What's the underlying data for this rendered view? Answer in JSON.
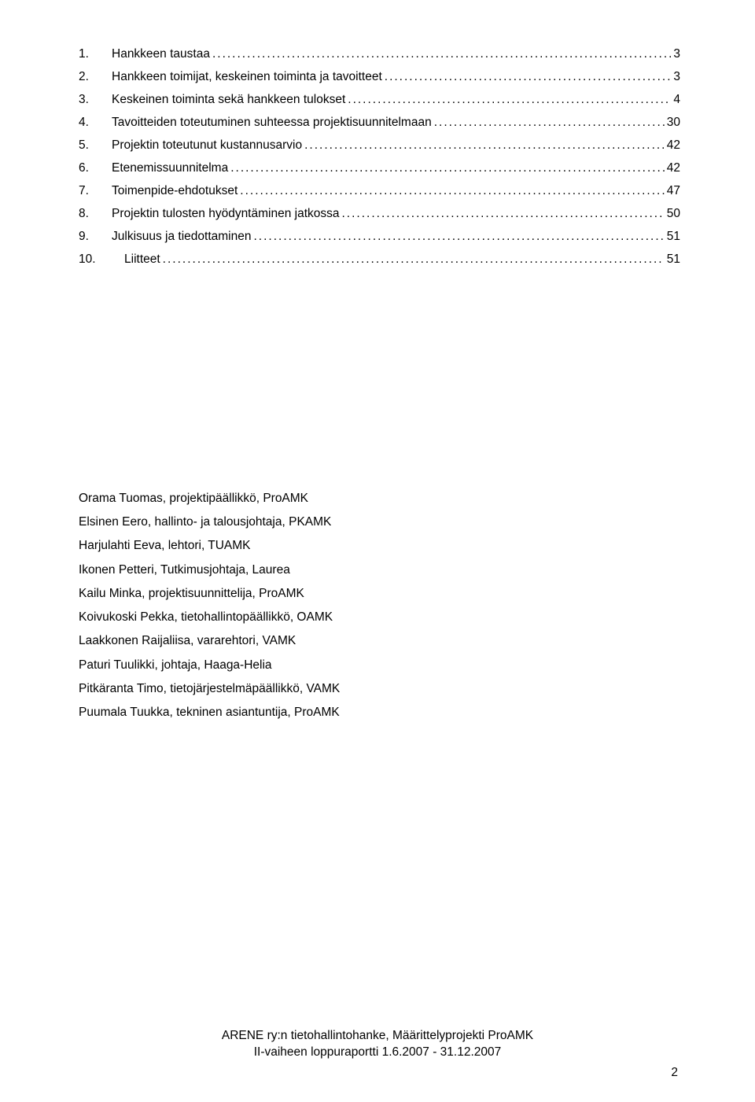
{
  "toc": {
    "items": [
      {
        "num": "1.",
        "label": "Hankkeen taustaa",
        "page": "3"
      },
      {
        "num": "2.",
        "label": "Hankkeen toimijat, keskeinen toiminta ja tavoitteet",
        "page": "3"
      },
      {
        "num": "3.",
        "label": "Keskeinen toiminta sekä hankkeen tulokset",
        "page": "4"
      },
      {
        "num": "4.",
        "label": "Tavoitteiden toteutuminen suhteessa projektisuunnitelmaan",
        "page": "30"
      },
      {
        "num": "5.",
        "label": "Projektin toteutunut kustannusarvio",
        "page": "42"
      },
      {
        "num": "6.",
        "label": "Etenemissuunnitelma",
        "page": "42"
      },
      {
        "num": "7.",
        "label": "Toimenpide-ehdotukset",
        "page": "47"
      },
      {
        "num": "8.",
        "label": "Projektin tulosten hyödyntäminen jatkossa",
        "page": "50"
      },
      {
        "num": "9.",
        "label": "Julkisuus ja tiedottaminen",
        "page": "51"
      },
      {
        "num": "10.",
        "label": "Liitteet",
        "page": "51",
        "indent": true
      }
    ]
  },
  "people": [
    "Orama Tuomas, projektipäällikkö, ProAMK",
    "Elsinen Eero, hallinto- ja talousjohtaja, PKAMK",
    "Harjulahti Eeva, lehtori, TUAMK",
    "Ikonen Petteri, Tutkimusjohtaja, Laurea",
    "Kailu Minka, projektisuunnittelija, ProAMK",
    "Koivukoski Pekka, tietohallintopäällikkö, OAMK",
    "Laakkonen Raijaliisa, vararehtori, VAMK",
    "Paturi Tuulikki, johtaja, Haaga-Helia",
    "Pitkäranta Timo, tietojärjestelmäpäällikkö, VAMK",
    "Puumala Tuukka, tekninen asiantuntija, ProAMK"
  ],
  "footer": {
    "line1": "ARENE ry:n tietohallintohanke, Määrittelyprojekti ProAMK",
    "line2": "II-vaiheen loppuraportti 1.6.2007 - 31.12.2007"
  },
  "page_number": "2",
  "dotfill": "...................................................................................................................................................................................................................."
}
